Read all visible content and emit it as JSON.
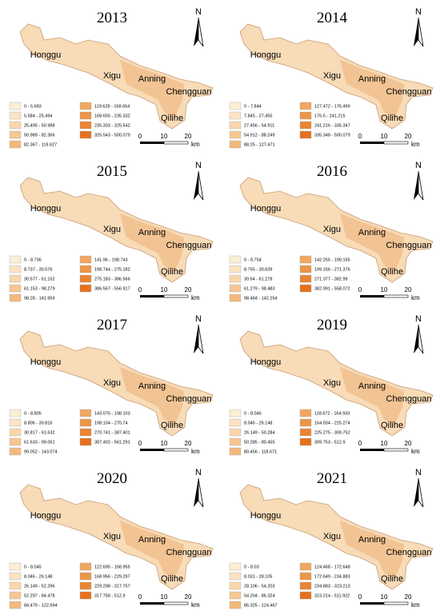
{
  "labels": {
    "north": "N",
    "places": [
      "Honggu",
      "Xigu",
      "Anning",
      "Chengguan",
      "Qilihe"
    ],
    "scale": [
      "0",
      "10",
      "20"
    ],
    "unit": "km"
  },
  "panels": [
    {
      "title": "2013",
      "legend": [
        "0 - 5.683",
        "5.684 - 25.494",
        "25.495 - 50.988",
        "50.989 - 82.366",
        "82.367 - 119.627",
        "119.628 - 168.654",
        "168.655 - 235.332",
        "235.333 - 325.542",
        "325.543 - 500.079"
      ]
    },
    {
      "title": "2014",
      "legend": [
        "0 - 7.844",
        "7.845 - 27.455",
        "27.456 - 54.911",
        "54.912 - 88.249",
        "88.25 - 127.471",
        "127.472 - 176.499",
        "176.5 - 241.215",
        "241.216 - 335.347",
        "335.348 - 500.079"
      ]
    },
    {
      "title": "2015",
      "legend": [
        "0 - 8.736",
        "8.737 - 30.576",
        "30.577 - 61.152",
        "61.153 - 98.279",
        "98.28 - 141.959",
        "141.96 - 198.743",
        "198.744 - 275.182",
        "275.183 - 386.566",
        "386.567 - 556.917"
      ]
    },
    {
      "title": "2016",
      "legend": [
        "0 - 8.754",
        "8.755 - 30.639",
        "30.64 - 61.278",
        "61.279 - 98.483",
        "98.484 - 142.254",
        "142.255 - 199.155",
        "199.156 - 271.376",
        "271.377 - 382.99",
        "382.991 - 558.072"
      ]
    },
    {
      "title": "2017",
      "legend": [
        "0 - 8.805",
        "8.806 - 30.816",
        "30.817 - 61.632",
        "61.633 - 99.051",
        "99.052 - 143.074",
        "143.075 - 198.103",
        "198.104 - 270.74",
        "270.741 - 387.401",
        "387.402 - 561.291"
      ]
    },
    {
      "title": "2019",
      "legend": [
        "0 - 8.045",
        "8.046 - 26.148",
        "26.149 - 50.284",
        "50.285 - 80.455",
        "80.456 - 118.671",
        "118.672 - 164.933",
        "164.934 - 225.274",
        "225.275 - 309.752",
        "309.753 - 512.9"
      ]
    },
    {
      "title": "2020",
      "legend": [
        "0 - 8.045",
        "8.046 - 26.148",
        "26.149 - 52.296",
        "52.297 - 84.478",
        "84.479 - 122.694",
        "122.695 - 168.955",
        "168.956 - 229.297",
        "229.298 - 317.757",
        "317.758 - 512.9"
      ]
    },
    {
      "title": "2021",
      "legend": [
        "0 - 8.03",
        "8.031 - 28.105",
        "28.106 - 54.203",
        "54.204 - 86.324",
        "86.325 - 124.467",
        "124.468 - 172.648",
        "172.649 - 234.883",
        "234.883 - 323.213",
        "323.214 - 511.922"
      ]
    }
  ]
}
